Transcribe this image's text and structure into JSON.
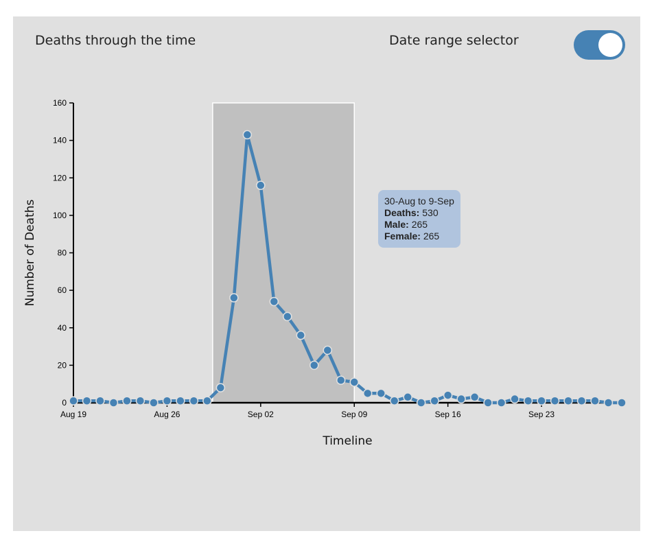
{
  "header": {
    "title": "Deaths through the time",
    "toggle_label": "Date range selector",
    "toggle_on": true
  },
  "colors": {
    "panel_bg": "#e0e0e0",
    "line": "#4682b4",
    "selection": "#c0c0c0",
    "tooltip_bg": "#b0c4de",
    "toggle": "#4682b4"
  },
  "tooltip": {
    "range": "30-Aug to 9-Sep",
    "deaths_label": "Deaths:",
    "deaths_value": "530",
    "male_label": "Male:",
    "male_value": "265",
    "female_label": "Female:",
    "female_value": "265"
  },
  "chart_data": {
    "type": "line",
    "title": "",
    "xlabel": "Timeline",
    "ylabel": "Number of Deaths",
    "ylim": [
      0,
      160
    ],
    "yticks": [
      0,
      20,
      40,
      60,
      80,
      100,
      120,
      140,
      160
    ],
    "xlim": [
      "2024-08-19",
      "2024-09-29"
    ],
    "xticks": [
      {
        "date": "2024-08-19",
        "label": "Aug 19"
      },
      {
        "date": "2024-08-26",
        "label": "Aug 26"
      },
      {
        "date": "2024-09-02",
        "label": "Sep 02"
      },
      {
        "date": "2024-09-09",
        "label": "Sep 09"
      },
      {
        "date": "2024-09-16",
        "label": "Sep 16"
      },
      {
        "date": "2024-09-23",
        "label": "Sep 23"
      }
    ],
    "selection": {
      "start": "2024-08-29",
      "end": "2024-09-09"
    },
    "grid": false,
    "legend": "none",
    "x": [
      "2024-08-19",
      "2024-08-20",
      "2024-08-21",
      "2024-08-22",
      "2024-08-23",
      "2024-08-24",
      "2024-08-25",
      "2024-08-26",
      "2024-08-27",
      "2024-08-28",
      "2024-08-29",
      "2024-08-30",
      "2024-08-31",
      "2024-09-01",
      "2024-09-02",
      "2024-09-03",
      "2024-09-04",
      "2024-09-05",
      "2024-09-06",
      "2024-09-07",
      "2024-09-08",
      "2024-09-09",
      "2024-09-10",
      "2024-09-11",
      "2024-09-12",
      "2024-09-13",
      "2024-09-14",
      "2024-09-15",
      "2024-09-16",
      "2024-09-17",
      "2024-09-18",
      "2024-09-19",
      "2024-09-20",
      "2024-09-21",
      "2024-09-22",
      "2024-09-23",
      "2024-09-24",
      "2024-09-25",
      "2024-09-26",
      "2024-09-27",
      "2024-09-28",
      "2024-09-29"
    ],
    "values": [
      1,
      1,
      1,
      0,
      1,
      1,
      0,
      1,
      1,
      1,
      1,
      8,
      56,
      143,
      116,
      54,
      46,
      36,
      20,
      28,
      12,
      11,
      5,
      5,
      1,
      3,
      0,
      1,
      4,
      2,
      3,
      0,
      0,
      2,
      1,
      1,
      1,
      1,
      1,
      1,
      0,
      0
    ]
  }
}
